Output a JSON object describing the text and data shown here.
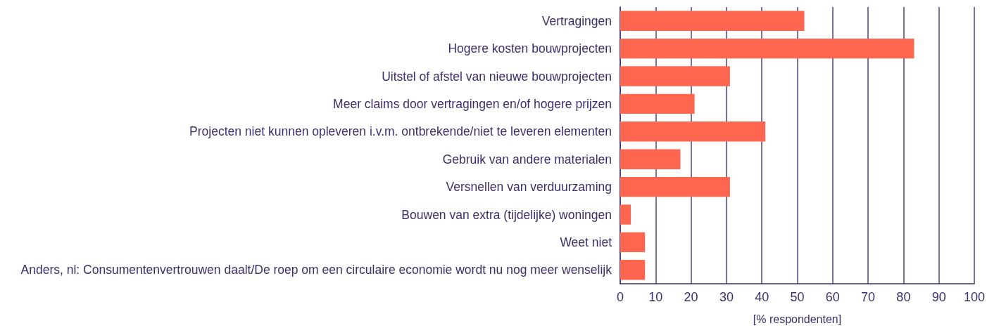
{
  "chart_data": {
    "type": "bar",
    "orientation": "horizontal",
    "categories": [
      "Vertragingen",
      "Hogere kosten bouwprojecten",
      "Uitstel of afstel van nieuwe bouwprojecten",
      "Meer claims door vertragingen en/of hogere prijzen",
      "Projecten niet kunnen opleveren i.v.m. ontbrekende/niet te leveren elementen",
      "Gebruik van andere materialen",
      "Versnellen van verduurzaming",
      "Bouwen van extra (tijdelijke) woningen",
      "Weet niet",
      "Anders, nl: Consumentenvertrouwen daalt/De roep om een circulaire economie wordt nu nog meer wenselijk"
    ],
    "values": [
      52,
      83,
      31,
      21,
      41,
      17,
      31,
      3,
      7,
      7
    ],
    "color": "#ff6650",
    "xlabel": "[% respondenten]",
    "xlim": [
      0,
      100
    ],
    "xticks": [
      0,
      10,
      20,
      30,
      40,
      50,
      60,
      70,
      80,
      90,
      100
    ],
    "grid": "x"
  }
}
